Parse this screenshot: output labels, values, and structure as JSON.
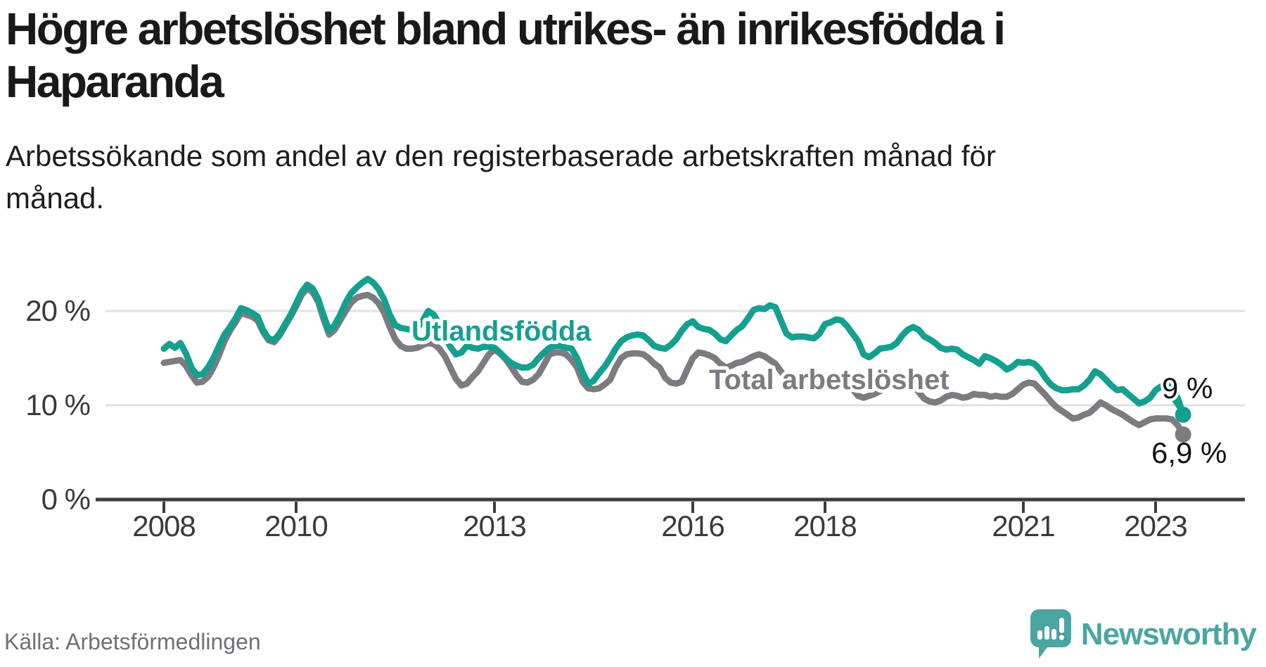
{
  "title": "Högre arbetslöshet bland utrikes- än inrikesfödda i Haparanda",
  "subtitle": "Arbetssökande som andel av den registerbaserade arbetskraften månad för månad.",
  "source": "Källa: Arbetsförmedlingen",
  "branding": {
    "name": "Newsworthy",
    "logo_color": "#4BA5A1",
    "logo_icon": "speech-bubble-bar-chart"
  },
  "chart_data": {
    "type": "line",
    "x_start": "2008-01",
    "x_end": "2023-06",
    "points_per_year": 12,
    "grid": "horizontal",
    "x_tick_years": [
      2008,
      2010,
      2013,
      2016,
      2018,
      2021,
      2023
    ],
    "x_tick_labels": [
      "2008",
      "2010",
      "2013",
      "2016",
      "2018",
      "2021",
      "2023"
    ],
    "y_ticks": [
      {
        "value": 0,
        "label": "0 %"
      },
      {
        "value": 10,
        "label": "10 %"
      },
      {
        "value": 20,
        "label": "20 %"
      }
    ],
    "ylim": [
      0,
      24
    ],
    "series": [
      {
        "name": "Utlandsfödda",
        "color": "#14A08F",
        "end_label": "9 %",
        "values": [
          16.0,
          16.5,
          16.1,
          16.6,
          15.5,
          14.0,
          13.2,
          13.3,
          14.0,
          15.0,
          16.3,
          17.5,
          18.3,
          19.2,
          20.3,
          20.1,
          19.8,
          19.4,
          18.0,
          17.1,
          16.9,
          17.6,
          18.6,
          19.6,
          20.8,
          22.0,
          22.8,
          22.4,
          21.3,
          19.5,
          17.9,
          18.5,
          19.6,
          20.9,
          21.9,
          22.5,
          23.0,
          23.4,
          23.0,
          22.3,
          21.2,
          19.6,
          18.5,
          18.2,
          18.1,
          18.0,
          18.2,
          19.0,
          20.0,
          19.6,
          18.6,
          17.4,
          16.2,
          15.4,
          15.6,
          16.3,
          16.1,
          16.0,
          16.2,
          16.2,
          16.1,
          15.6,
          15.0,
          14.5,
          14.2,
          14.0,
          14.0,
          14.3,
          15.0,
          15.6,
          16.1,
          16.3,
          16.3,
          16.1,
          16.0,
          15.0,
          13.5,
          12.3,
          12.6,
          13.4,
          14.1,
          15.0,
          16.0,
          16.8,
          17.2,
          17.4,
          17.5,
          17.4,
          16.9,
          16.3,
          16.1,
          16.0,
          16.4,
          17.0,
          17.9,
          18.6,
          18.9,
          18.3,
          18.1,
          18.0,
          17.6,
          17.0,
          16.8,
          17.4,
          18.0,
          18.4,
          19.2,
          20.1,
          20.3,
          20.2,
          20.6,
          20.4,
          19.0,
          17.6,
          17.2,
          17.3,
          17.3,
          17.2,
          17.1,
          17.6,
          18.6,
          18.8,
          19.1,
          19.0,
          18.4,
          17.6,
          16.8,
          15.4,
          15.1,
          15.5,
          16.0,
          16.1,
          16.2,
          16.6,
          17.4,
          18.0,
          18.3,
          18.0,
          17.3,
          17.0,
          16.6,
          16.1,
          15.9,
          16.0,
          15.9,
          15.4,
          15.1,
          14.8,
          14.4,
          15.2,
          15.0,
          14.7,
          14.3,
          13.8,
          14.1,
          14.6,
          14.5,
          14.6,
          14.4,
          13.8,
          12.9,
          12.2,
          11.8,
          11.6,
          11.6,
          11.7,
          11.7,
          12.1,
          12.7,
          13.6,
          13.3,
          12.7,
          12.1,
          11.6,
          11.7,
          11.2,
          10.7,
          10.2,
          10.4,
          10.8,
          11.6,
          12.0,
          12.1,
          11.9,
          10.8,
          9.0
        ]
      },
      {
        "name": "Total arbetslöshet",
        "color": "#7B7B80",
        "end_label": "6,9 %",
        "values": [
          14.5,
          14.6,
          14.7,
          14.8,
          14.2,
          13.2,
          12.4,
          12.5,
          13.0,
          14.0,
          15.3,
          16.8,
          17.9,
          18.8,
          19.8,
          19.6,
          19.4,
          19.0,
          17.8,
          16.9,
          16.7,
          17.4,
          18.4,
          19.4,
          20.5,
          21.7,
          22.4,
          22.0,
          21.0,
          19.1,
          17.5,
          18.0,
          19.0,
          20.0,
          20.9,
          21.4,
          21.6,
          21.7,
          21.4,
          20.8,
          19.8,
          18.3,
          17.0,
          16.3,
          16.0,
          16.0,
          16.1,
          16.4,
          16.6,
          16.5,
          16.0,
          15.2,
          14.0,
          12.8,
          12.1,
          12.3,
          13.0,
          13.6,
          14.5,
          15.4,
          15.9,
          15.5,
          14.9,
          14.1,
          13.2,
          12.5,
          12.4,
          12.7,
          13.3,
          14.3,
          15.4,
          15.6,
          15.6,
          15.4,
          14.8,
          14.0,
          12.5,
          11.8,
          11.7,
          11.8,
          12.2,
          12.7,
          14.0,
          15.0,
          15.4,
          15.5,
          15.5,
          15.4,
          15.0,
          14.4,
          14.0,
          12.9,
          12.4,
          12.3,
          12.5,
          13.8,
          15.0,
          15.6,
          15.5,
          15.3,
          15.0,
          14.4,
          14.0,
          14.2,
          14.5,
          14.6,
          14.9,
          15.2,
          15.4,
          15.2,
          14.8,
          14.4,
          13.6,
          12.8,
          12.3,
          12.2,
          12.2,
          12.1,
          12.2,
          12.6,
          13.0,
          13.2,
          13.3,
          13.1,
          12.6,
          11.7,
          11.0,
          10.8,
          11.0,
          11.2,
          11.5,
          11.9,
          12.2,
          12.6,
          12.9,
          12.7,
          12.2,
          11.4,
          10.7,
          10.4,
          10.3,
          10.5,
          10.9,
          11.1,
          11.0,
          10.8,
          10.9,
          11.2,
          11.1,
          11.1,
          10.9,
          11.0,
          10.9,
          10.9,
          11.2,
          11.7,
          12.2,
          12.4,
          12.3,
          11.7,
          11.1,
          10.4,
          9.8,
          9.4,
          9.0,
          8.6,
          8.7,
          9.0,
          9.2,
          9.7,
          10.3,
          10.0,
          9.6,
          9.3,
          9.0,
          8.6,
          8.2,
          7.9,
          8.2,
          8.5,
          8.6,
          8.6,
          8.6,
          8.5,
          7.9,
          6.9
        ]
      }
    ]
  }
}
